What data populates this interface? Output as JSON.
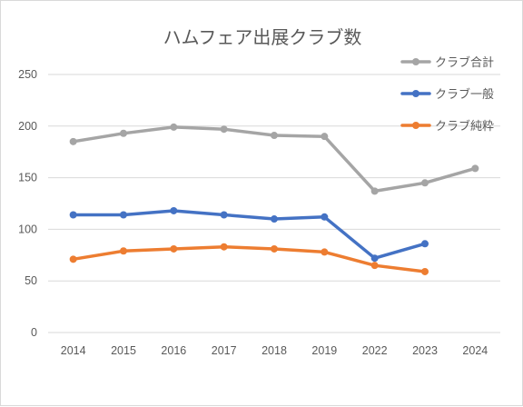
{
  "chart_data": {
    "type": "line",
    "title": "ハムフェア出展クラブ数",
    "xlabel": "",
    "ylabel": "",
    "categories": [
      "2014",
      "2015",
      "2016",
      "2017",
      "2018",
      "2019",
      "2022",
      "2023",
      "2024"
    ],
    "ylim": [
      0,
      250
    ],
    "yticks": [
      0,
      50,
      100,
      150,
      200,
      250
    ],
    "grid": true,
    "legend_position": "top-right",
    "series": [
      {
        "name": "クラブ合計",
        "color": "#a5a5a5",
        "values": [
          185,
          193,
          199,
          197,
          191,
          190,
          137,
          145,
          159
        ]
      },
      {
        "name": "クラブ一般",
        "color": "#4472c4",
        "values": [
          114,
          114,
          118,
          114,
          110,
          112,
          72,
          86,
          null
        ]
      },
      {
        "name": "クラブ純粋",
        "color": "#ed7d31",
        "values": [
          71,
          79,
          81,
          83,
          81,
          78,
          65,
          59,
          null
        ]
      }
    ]
  }
}
